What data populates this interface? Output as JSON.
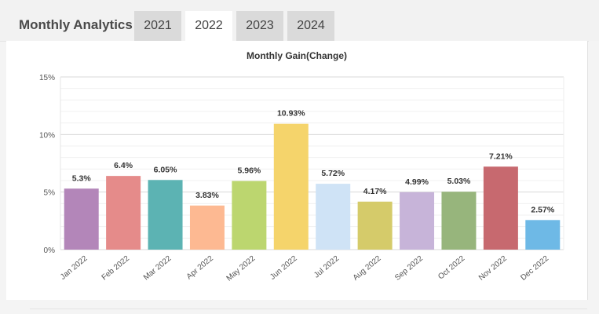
{
  "header": {
    "title": "Monthly Analytics",
    "tabs": [
      {
        "label": "2021",
        "active": false
      },
      {
        "label": "2022",
        "active": true
      },
      {
        "label": "2023",
        "active": false
      },
      {
        "label": "2024",
        "active": false
      }
    ]
  },
  "chart_data": {
    "type": "bar",
    "title": "Monthly Gain(Change)",
    "xlabel": "",
    "ylabel": "",
    "ylim": [
      0,
      15
    ],
    "yticks": [
      0,
      5,
      10,
      15
    ],
    "ytick_labels": [
      "0%",
      "5%",
      "10%",
      "15%"
    ],
    "categories": [
      "Jan 2022",
      "Feb 2022",
      "Mar 2022",
      "Apr 2022",
      "May 2022",
      "Jun 2022",
      "Jul 2022",
      "Aug 2022",
      "Sep 2022",
      "Oct 2022",
      "Nov 2022",
      "Dec 2022"
    ],
    "values": [
      5.3,
      6.4,
      6.05,
      3.83,
      5.96,
      10.93,
      5.72,
      4.17,
      4.99,
      5.03,
      7.21,
      2.57
    ],
    "value_labels": [
      "5.3%",
      "6.4%",
      "6.05%",
      "3.83%",
      "5.96%",
      "10.93%",
      "5.72%",
      "4.17%",
      "4.99%",
      "5.03%",
      "7.21%",
      "2.57%"
    ],
    "colors": [
      "#b386b9",
      "#e58b8a",
      "#5cb3b3",
      "#fdb992",
      "#bcd66f",
      "#f5d46b",
      "#cfe3f6",
      "#d5cb6a",
      "#c7b4d9",
      "#97b57c",
      "#c7696f",
      "#6eb9e6"
    ]
  }
}
